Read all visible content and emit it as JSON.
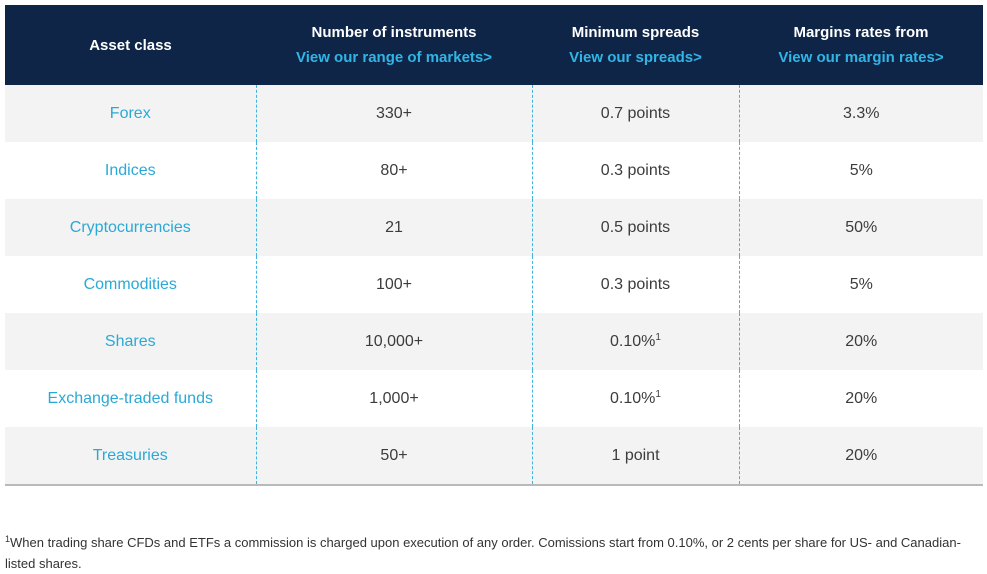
{
  "table": {
    "headers": [
      {
        "title": "Asset class",
        "link": ""
      },
      {
        "title": "Number of instruments",
        "link": "View our range of markets>"
      },
      {
        "title": "Minimum spreads",
        "link": "View our spreads>"
      },
      {
        "title": "Margins rates from",
        "link": "View our margin rates>"
      }
    ],
    "rows": [
      {
        "asset": "Forex",
        "instruments": "330+",
        "spread": "0.7 points",
        "spread_note": "",
        "margin": "3.3%"
      },
      {
        "asset": "Indices",
        "instruments": "80+",
        "spread": "0.3 points",
        "spread_note": "",
        "margin": "5%"
      },
      {
        "asset": "Cryptocurrencies",
        "instruments": "21",
        "spread": "0.5 points",
        "spread_note": "",
        "margin": "50%"
      },
      {
        "asset": "Commodities",
        "instruments": "100+",
        "spread": "0.3 points",
        "spread_note": "",
        "margin": "5%"
      },
      {
        "asset": "Shares",
        "instruments": "10,000+",
        "spread": "0.10%",
        "spread_note": "1",
        "margin": "20%"
      },
      {
        "asset": "Exchange-traded funds",
        "instruments": "1,000+",
        "spread": "0.10%",
        "spread_note": "1",
        "margin": "20%"
      },
      {
        "asset": "Treasuries",
        "instruments": "50+",
        "spread": "1 point",
        "spread_note": "",
        "margin": "20%"
      }
    ]
  },
  "footnote": {
    "marker": "1",
    "text": "When trading share CFDs and ETFs a commission is charged upon execution of any order. Comissions start from 0.10%, or 2 cents per share for US- and Canadian-listed shares."
  },
  "colors": {
    "header_bg": "#0e2547",
    "link": "#31b5e6",
    "asset_text": "#2aa9d6",
    "row_alt": "#f3f3f3",
    "divider": "#3fb4e0"
  }
}
